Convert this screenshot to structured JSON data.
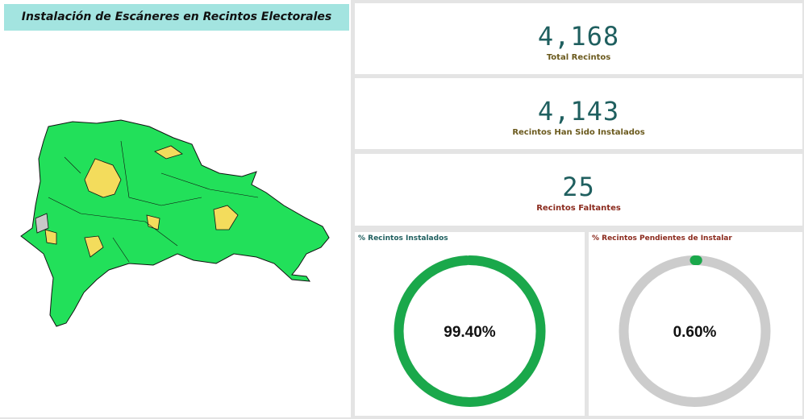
{
  "header": {
    "title": "Instalación de Escáneres en Recintos Electorales"
  },
  "kpis": [
    {
      "value": "4,168",
      "label": "Total Recintos"
    },
    {
      "value": "4,143",
      "label": "Recintos Han Sido Instalados"
    },
    {
      "value": "25",
      "label": "Recintos Faltantes"
    }
  ],
  "gauges": [
    {
      "title": "% Recintos Instalados",
      "value": 99.4,
      "value_label": "99.40%",
      "range": [
        0,
        100
      ],
      "color": "#1aa84b"
    },
    {
      "title": "% Recintos Pendientes de Instalar",
      "value": 0.6,
      "value_label": "0.60%",
      "range": [
        0,
        100
      ],
      "color": "#1aa84b"
    }
  ]
}
